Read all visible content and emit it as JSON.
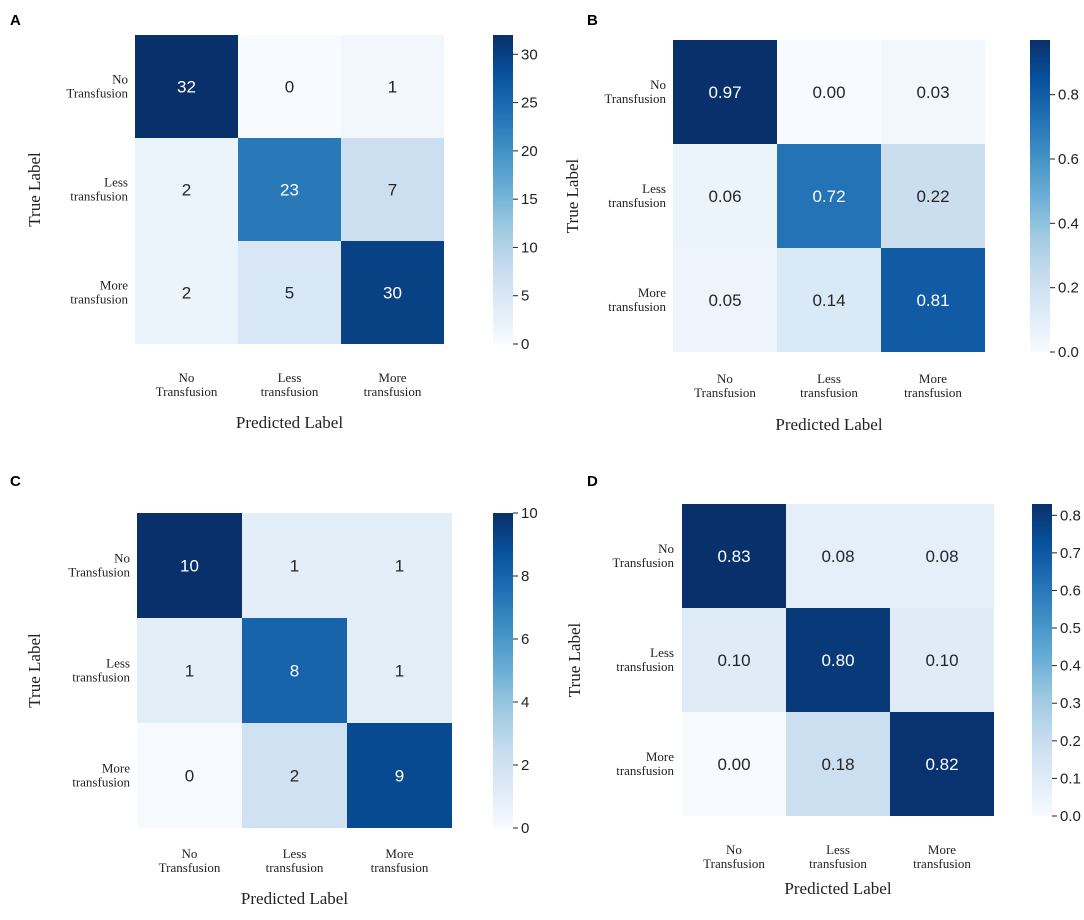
{
  "colormap": {
    "name": "Blues",
    "stops": [
      "#f7fbff",
      "#deebf7",
      "#c6dbef",
      "#9ecae1",
      "#6baed6",
      "#4292c6",
      "#2171b5",
      "#08519c",
      "#08306b"
    ]
  },
  "chart_data": [
    {
      "panel": "A",
      "type": "heatmap",
      "xlabel": "Predicted Label",
      "ylabel": "True Label",
      "x_categories": [
        [
          "No",
          "Transfusion"
        ],
        [
          "Less",
          "transfusion"
        ],
        [
          "More",
          "transfusion"
        ]
      ],
      "y_categories": [
        [
          "No",
          "Transfusion"
        ],
        [
          "Less",
          "transfusion"
        ],
        [
          "More",
          "transfusion"
        ]
      ],
      "values": [
        [
          32,
          0,
          1
        ],
        [
          2,
          23,
          7
        ],
        [
          2,
          5,
          30
        ]
      ],
      "labels": [
        [
          "32",
          "0",
          "1"
        ],
        [
          "2",
          "23",
          "7"
        ],
        [
          "2",
          "5",
          "30"
        ]
      ],
      "vmin": 0,
      "vmax": 32,
      "colorbar_ticks": [
        0,
        5,
        10,
        15,
        20,
        25,
        30
      ],
      "colorbar_tick_labels": [
        "0",
        "5",
        "10",
        "15",
        "20",
        "25",
        "30"
      ]
    },
    {
      "panel": "B",
      "type": "heatmap",
      "xlabel": "Predicted Label",
      "ylabel": "True Label",
      "x_categories": [
        [
          "No",
          "Transfusion"
        ],
        [
          "Less",
          "transfusion"
        ],
        [
          "More",
          "transfusion"
        ]
      ],
      "y_categories": [
        [
          "No",
          "Transfusion"
        ],
        [
          "Less",
          "transfusion"
        ],
        [
          "More",
          "transfusion"
        ]
      ],
      "values": [
        [
          0.97,
          0.0,
          0.03
        ],
        [
          0.06,
          0.72,
          0.22
        ],
        [
          0.05,
          0.14,
          0.81
        ]
      ],
      "labels": [
        [
          "0.97",
          "0.00",
          "0.03"
        ],
        [
          "0.06",
          "0.72",
          "0.22"
        ],
        [
          "0.05",
          "0.14",
          "0.81"
        ]
      ],
      "vmin": 0,
      "vmax": 0.97,
      "colorbar_ticks": [
        0,
        0.2,
        0.4,
        0.6,
        0.8
      ],
      "colorbar_tick_labels": [
        "0.0",
        "0.2",
        "0.4",
        "0.6",
        "0.8"
      ]
    },
    {
      "panel": "C",
      "type": "heatmap",
      "xlabel": "Predicted Label",
      "ylabel": "True Label",
      "x_categories": [
        [
          "No",
          "Transfusion"
        ],
        [
          "Less",
          "transfusion"
        ],
        [
          "More",
          "transfusion"
        ]
      ],
      "y_categories": [
        [
          "No",
          "Transfusion"
        ],
        [
          "Less",
          "transfusion"
        ],
        [
          "More",
          "transfusion"
        ]
      ],
      "values": [
        [
          10,
          1,
          1
        ],
        [
          1,
          8,
          1
        ],
        [
          0,
          2,
          9
        ]
      ],
      "labels": [
        [
          "10",
          "1",
          "1"
        ],
        [
          "1",
          "8",
          "1"
        ],
        [
          "0",
          "2",
          "9"
        ]
      ],
      "vmin": 0,
      "vmax": 10,
      "colorbar_ticks": [
        0,
        2,
        4,
        6,
        8,
        10
      ],
      "colorbar_tick_labels": [
        "0",
        "2",
        "4",
        "6",
        "8",
        "10"
      ]
    },
    {
      "panel": "D",
      "type": "heatmap",
      "xlabel": "Predicted Label",
      "ylabel": "True Label",
      "x_categories": [
        [
          "No",
          "Transfusion"
        ],
        [
          "Less",
          "transfusion"
        ],
        [
          "More",
          "transfusion"
        ]
      ],
      "y_categories": [
        [
          "No",
          "Transfusion"
        ],
        [
          "Less",
          "transfusion"
        ],
        [
          "More",
          "transfusion"
        ]
      ],
      "values": [
        [
          0.83,
          0.08,
          0.08
        ],
        [
          0.1,
          0.8,
          0.1
        ],
        [
          0.0,
          0.18,
          0.82
        ]
      ],
      "labels": [
        [
          "0.83",
          "0.08",
          "0.08"
        ],
        [
          "0.10",
          "0.80",
          "0.10"
        ],
        [
          "0.00",
          "0.18",
          "0.82"
        ]
      ],
      "vmin": 0,
      "vmax": 0.83,
      "colorbar_ticks": [
        0,
        0.1,
        0.2,
        0.3,
        0.4,
        0.5,
        0.6,
        0.7,
        0.8
      ],
      "colorbar_tick_labels": [
        "0.0",
        "0.1",
        "0.2",
        "0.3",
        "0.4",
        "0.5",
        "0.6",
        "0.7",
        "0.8"
      ]
    }
  ]
}
